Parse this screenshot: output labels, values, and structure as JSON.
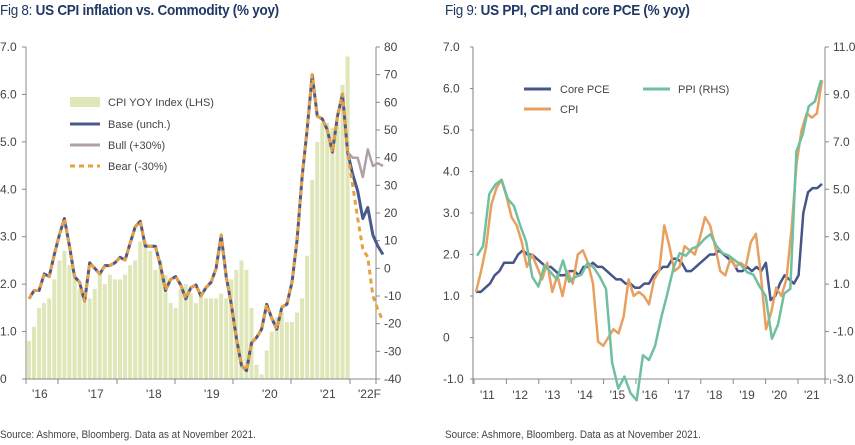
{
  "figures": [
    {
      "fig_label": "Fig 8:",
      "title": "US CPI inflation vs. Commodity (% yoy)",
      "source": "Source: Ashmore, Bloomberg. Data as at November 2021."
    },
    {
      "fig_label": "Fig 9:",
      "title": "US PPI, CPI and core PCE (% yoy)",
      "source": "Source: Ashmore, Bloomberg. Data as at November 2021."
    }
  ],
  "colors": {
    "cpi_bar": "#dfe7b8",
    "base": "#4a5a8c",
    "bull": "#b0a0a8",
    "bear": "#e8a040",
    "core_pce": "#46558a",
    "cpi": "#e8a060",
    "ppi": "#6fbfa0",
    "axis": "#888888"
  },
  "chart_data": [
    {
      "type": "bar+line",
      "title": "US CPI inflation vs. Commodity (% yoy)",
      "left_axis": {
        "ylim": [
          0,
          7
        ],
        "ticks": [
          "0",
          "1.0",
          "2.0",
          "3.0",
          "4.0",
          "5.0",
          "6.0",
          "7.0"
        ]
      },
      "right_axis": {
        "ylim": [
          -40,
          80
        ],
        "ticks": [
          "-40",
          "-30",
          "-20",
          "-10",
          "0",
          "10",
          "20",
          "30",
          "40",
          "50",
          "60",
          "70",
          "80"
        ]
      },
      "x_ticks": [
        "'16",
        "'17",
        "'18",
        "'19",
        "'20",
        "'21",
        "'22F"
      ],
      "legend": [
        "CPI YOY Index (LHS)",
        "Base (unch.)",
        "Bull (+30%)",
        "Bear (-30%)"
      ],
      "legend_position": "top-left",
      "cpi_yoy_lhs": [
        0.8,
        1.1,
        1.5,
        1.6,
        1.7,
        2.1,
        2.5,
        2.7,
        2.4,
        2.2,
        1.9,
        1.6,
        1.7,
        1.9,
        2.2,
        2.0,
        2.2,
        2.1,
        2.1,
        2.2,
        2.4,
        2.5,
        2.9,
        2.9,
        2.7,
        2.3,
        2.5,
        2.2,
        1.6,
        1.5,
        1.9,
        2.0,
        1.8,
        1.6,
        1.8,
        1.7,
        1.7,
        1.7,
        1.8,
        1.7,
        2.1,
        2.3,
        2.5,
        2.3,
        1.5,
        0.3,
        0.1,
        0.6,
        1.0,
        1.3,
        1.4,
        1.2,
        1.2,
        1.4,
        1.7,
        2.6,
        4.2,
        5.0,
        5.4,
        5.4,
        5.3,
        5.4,
        6.2,
        6.8
      ],
      "base_rhs": [
        -11,
        -8,
        -8,
        -2,
        -3,
        5,
        12,
        18,
        8,
        -3,
        -5,
        -12,
        2,
        0,
        -2,
        1,
        1,
        2,
        4,
        3,
        9,
        15,
        17,
        8,
        8,
        8,
        1,
        -8,
        -4,
        -3,
        -6,
        -11,
        -7,
        -6,
        -10,
        -7,
        -5,
        0,
        12,
        -3,
        -13,
        -25,
        -35,
        -37,
        -27,
        -25,
        -22,
        -13,
        -18,
        -22,
        -14,
        -13,
        -5,
        10,
        33,
        50,
        70,
        55,
        54,
        50,
        42,
        55,
        63,
        42,
        34,
        28,
        18,
        22,
        12,
        8,
        5
      ],
      "bull_rhs": [
        null,
        null,
        null,
        null,
        null,
        null,
        null,
        null,
        null,
        null,
        null,
        null,
        null,
        null,
        null,
        null,
        null,
        null,
        null,
        null,
        null,
        null,
        null,
        null,
        null,
        null,
        null,
        null,
        null,
        null,
        null,
        null,
        null,
        null,
        null,
        null,
        null,
        null,
        null,
        null,
        null,
        null,
        null,
        null,
        null,
        null,
        null,
        null,
        null,
        null,
        null,
        null,
        null,
        null,
        null,
        null,
        null,
        null,
        null,
        null,
        null,
        null,
        null,
        42,
        40,
        40,
        33,
        43,
        37,
        38,
        37
      ],
      "bear_rhs": [
        -11,
        -8,
        -8,
        -2,
        -3,
        5,
        12,
        18,
        8,
        -3,
        -5,
        -12,
        2,
        0,
        -2,
        1,
        1,
        2,
        4,
        3,
        9,
        15,
        17,
        8,
        8,
        8,
        1,
        -8,
        -4,
        -3,
        -6,
        -11,
        -7,
        -6,
        -10,
        -7,
        -5,
        0,
        12,
        -3,
        -13,
        -25,
        -35,
        -37,
        -27,
        -25,
        -22,
        -13,
        -18,
        -22,
        -14,
        -13,
        -5,
        10,
        33,
        50,
        70,
        55,
        54,
        50,
        42,
        55,
        63,
        42,
        30,
        18,
        7,
        4,
        -10,
        -15,
        -19
      ]
    },
    {
      "type": "line",
      "title": "US PPI, CPI and core PCE (% yoy)",
      "left_axis": {
        "ylim": [
          -1,
          7
        ],
        "ticks": [
          "-1.0",
          "0",
          "1.0",
          "2.0",
          "3.0",
          "4.0",
          "5.0",
          "6.0",
          "7.0"
        ]
      },
      "right_axis": {
        "ylim": [
          -3,
          11
        ],
        "ticks": [
          "-3.0",
          "-1.0",
          "1.0",
          "3.0",
          "5.0",
          "7.0",
          "9.0",
          "11.0"
        ]
      },
      "x_ticks": [
        "'11",
        "'12",
        "'13",
        "'14",
        "'15",
        "'16",
        "'17",
        "'18",
        "'19",
        "'20",
        "'21"
      ],
      "legend": [
        "Core PCE",
        "CPI",
        "PPI (RHS)"
      ],
      "legend_position": "top-left",
      "core_pce": [
        1.1,
        1.1,
        1.2,
        1.3,
        1.5,
        1.6,
        1.8,
        1.8,
        1.8,
        2.0,
        2.1,
        2.0,
        2.0,
        1.9,
        1.8,
        1.7,
        1.7,
        1.6,
        1.5,
        1.5,
        1.6,
        1.6,
        1.5,
        1.7,
        1.7,
        1.8,
        1.7,
        1.7,
        1.6,
        1.5,
        1.4,
        1.4,
        1.3,
        1.3,
        1.2,
        1.2,
        1.3,
        1.3,
        1.5,
        1.6,
        1.7,
        1.7,
        1.9,
        1.9,
        1.8,
        1.6,
        1.6,
        1.7,
        1.8,
        1.9,
        2.0,
        2.0,
        2.1,
        2.0,
        1.9,
        1.8,
        1.6,
        1.6,
        1.7,
        1.6,
        1.7,
        1.6,
        1.8,
        0.9,
        1.0,
        1.3,
        1.5,
        1.4,
        1.3,
        1.5,
        3.0,
        3.5,
        3.6,
        3.6,
        3.7
      ],
      "cpi": [
        1.1,
        1.6,
        2.2,
        3.2,
        3.6,
        3.8,
        3.4,
        2.9,
        2.7,
        2.3,
        1.7,
        2.0,
        1.7,
        1.4,
        1.8,
        1.1,
        1.5,
        1.0,
        1.6,
        1.3,
        2.0,
        2.1,
        1.8,
        1.3,
        -0.1,
        -0.2,
        0.0,
        0.2,
        0.1,
        0.5,
        1.4,
        1.0,
        1.1,
        1.0,
        0.8,
        1.4,
        1.6,
        2.7,
        2.2,
        1.6,
        1.7,
        2.2,
        2.1,
        2.0,
        2.4,
        2.9,
        2.7,
        2.2,
        1.6,
        1.5,
        1.9,
        1.7,
        1.8,
        1.7,
        2.3,
        2.5,
        1.5,
        0.2,
        0.6,
        1.2,
        1.0,
        1.4,
        2.6,
        4.2,
        5.0,
        5.4,
        5.3,
        5.4,
        6.2
      ],
      "ppi_rhs": [
        2.2,
        2.6,
        4.8,
        5.2,
        5.4,
        4.6,
        4.3,
        3.5,
        2.8,
        1.3,
        0.9,
        1.8,
        1.5,
        1.2,
        2.0,
        1.1,
        1.3,
        1.4,
        1.9,
        1.7,
        1.3,
        0.8,
        -2.3,
        -3.4,
        -2.9,
        -3.6,
        -3.9,
        -2.0,
        -2.2,
        -1.6,
        -0.4,
        0.6,
        1.7,
        2.3,
        2.2,
        2.5,
        2.6,
        2.9,
        3.1,
        2.6,
        2.3,
        2.2,
        2.0,
        1.8,
        1.5,
        1.4,
        0.9,
        0.5,
        -1.3,
        -0.7,
        0.6,
        0.8,
        6.6,
        7.3,
        8.5,
        8.7,
        9.6
      ]
    }
  ]
}
